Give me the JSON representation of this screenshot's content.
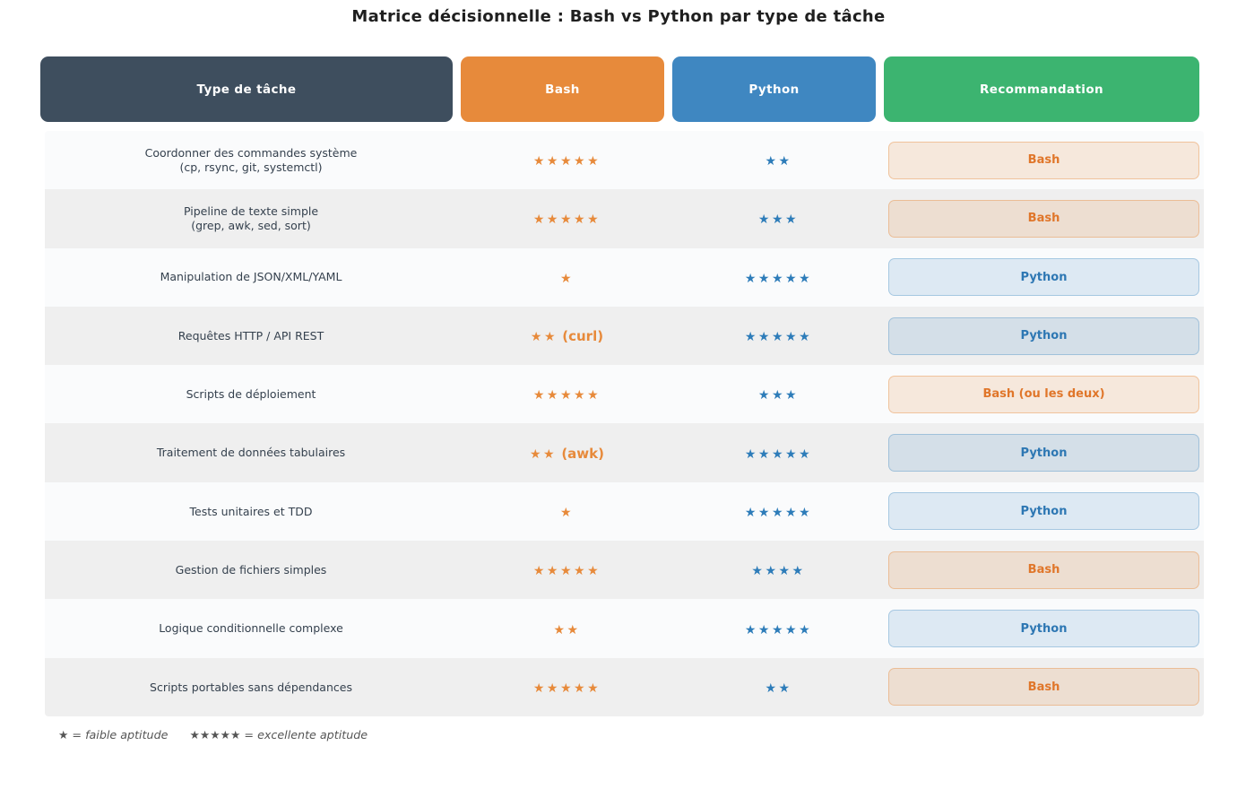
{
  "title": "Matrice décisionnelle : Bash vs Python par type de tâche",
  "columns": {
    "task": "Type de tâche",
    "bash": "Bash",
    "python": "Python",
    "recommendation": "Recommandation"
  },
  "colors": {
    "header_task_bg": "#3e4e5e",
    "header_bash_bg": "#e78a3b",
    "header_python_bg": "#3f87c1",
    "header_rec_bg": "#3cb470",
    "star_bash": "#e78a3b",
    "star_python": "#2d7cb9",
    "badge_bash_text": "#e0762a",
    "badge_python_text": "#2d77b3"
  },
  "rows": [
    {
      "task": "Coordonner des commandes système",
      "task_detail": "(cp, rsync, git, systemctl)",
      "bash_stars": "★★★★★",
      "bash_note": "",
      "python_stars": "★★",
      "recommendation": "Bash",
      "rec_type": "bash"
    },
    {
      "task": "Pipeline de texte simple",
      "task_detail": "(grep, awk, sed, sort)",
      "bash_stars": "★★★★★",
      "bash_note": "",
      "python_stars": "★★★",
      "recommendation": "Bash",
      "rec_type": "bash"
    },
    {
      "task": "Manipulation de JSON/XML/YAML",
      "task_detail": "",
      "bash_stars": "★",
      "bash_note": "",
      "python_stars": "★★★★★",
      "recommendation": "Python",
      "rec_type": "python"
    },
    {
      "task": "Requêtes HTTP / API REST",
      "task_detail": "",
      "bash_stars": "★★",
      "bash_note": "(curl)",
      "python_stars": "★★★★★",
      "recommendation": "Python",
      "rec_type": "python"
    },
    {
      "task": "Scripts de déploiement",
      "task_detail": "",
      "bash_stars": "★★★★★",
      "bash_note": "",
      "python_stars": "★★★",
      "recommendation": "Bash (ou les deux)",
      "rec_type": "bash"
    },
    {
      "task": "Traitement de données tabulaires",
      "task_detail": "",
      "bash_stars": "★★",
      "bash_note": "(awk)",
      "python_stars": "★★★★★",
      "recommendation": "Python",
      "rec_type": "python"
    },
    {
      "task": "Tests unitaires et TDD",
      "task_detail": "",
      "bash_stars": "★",
      "bash_note": "",
      "python_stars": "★★★★★",
      "recommendation": "Python",
      "rec_type": "python"
    },
    {
      "task": "Gestion de fichiers simples",
      "task_detail": "",
      "bash_stars": "★★★★★",
      "bash_note": "",
      "python_stars": "★★★★",
      "recommendation": "Bash",
      "rec_type": "bash"
    },
    {
      "task": "Logique conditionnelle complexe",
      "task_detail": "",
      "bash_stars": "★★",
      "bash_note": "",
      "python_stars": "★★★★★",
      "recommendation": "Python",
      "rec_type": "python"
    },
    {
      "task": "Scripts portables sans dépendances",
      "task_detail": "",
      "bash_stars": "★★★★★",
      "bash_note": "",
      "python_stars": "★★",
      "recommendation": "Bash",
      "rec_type": "bash"
    }
  ],
  "legend": {
    "low": "★ = faible aptitude",
    "high": "★★★★★ = excellente aptitude"
  },
  "chart_data": {
    "type": "table",
    "title": "Matrice décisionnelle : Bash vs Python par type de tâche",
    "columns": [
      "Type de tâche",
      "Bash",
      "Python",
      "Recommandation"
    ],
    "rating_scale": [
      1,
      5
    ],
    "categories": [
      "Coordonner des commandes système (cp, rsync, git, systemctl)",
      "Pipeline de texte simple (grep, awk, sed, sort)",
      "Manipulation de JSON/XML/YAML",
      "Requêtes HTTP / API REST",
      "Scripts de déploiement",
      "Traitement de données tabulaires",
      "Tests unitaires et TDD",
      "Gestion de fichiers simples",
      "Logique conditionnelle complexe",
      "Scripts portables sans dépendances"
    ],
    "series": [
      {
        "name": "Bash",
        "values": [
          5,
          5,
          1,
          2,
          5,
          2,
          1,
          5,
          2,
          5
        ],
        "notes": [
          "",
          "",
          "",
          "(curl)",
          "",
          "(awk)",
          "",
          "",
          "",
          ""
        ]
      },
      {
        "name": "Python",
        "values": [
          2,
          3,
          5,
          5,
          3,
          5,
          5,
          4,
          5,
          2
        ],
        "notes": [
          "",
          "",
          "",
          "",
          "",
          "",
          "",
          "",
          "",
          ""
        ]
      }
    ],
    "recommendations": [
      "Bash",
      "Bash",
      "Python",
      "Python",
      "Bash (ou les deux)",
      "Python",
      "Python",
      "Bash",
      "Python",
      "Bash"
    ],
    "legend": "★ = faible aptitude   ★★★★★ = excellente aptitude"
  }
}
